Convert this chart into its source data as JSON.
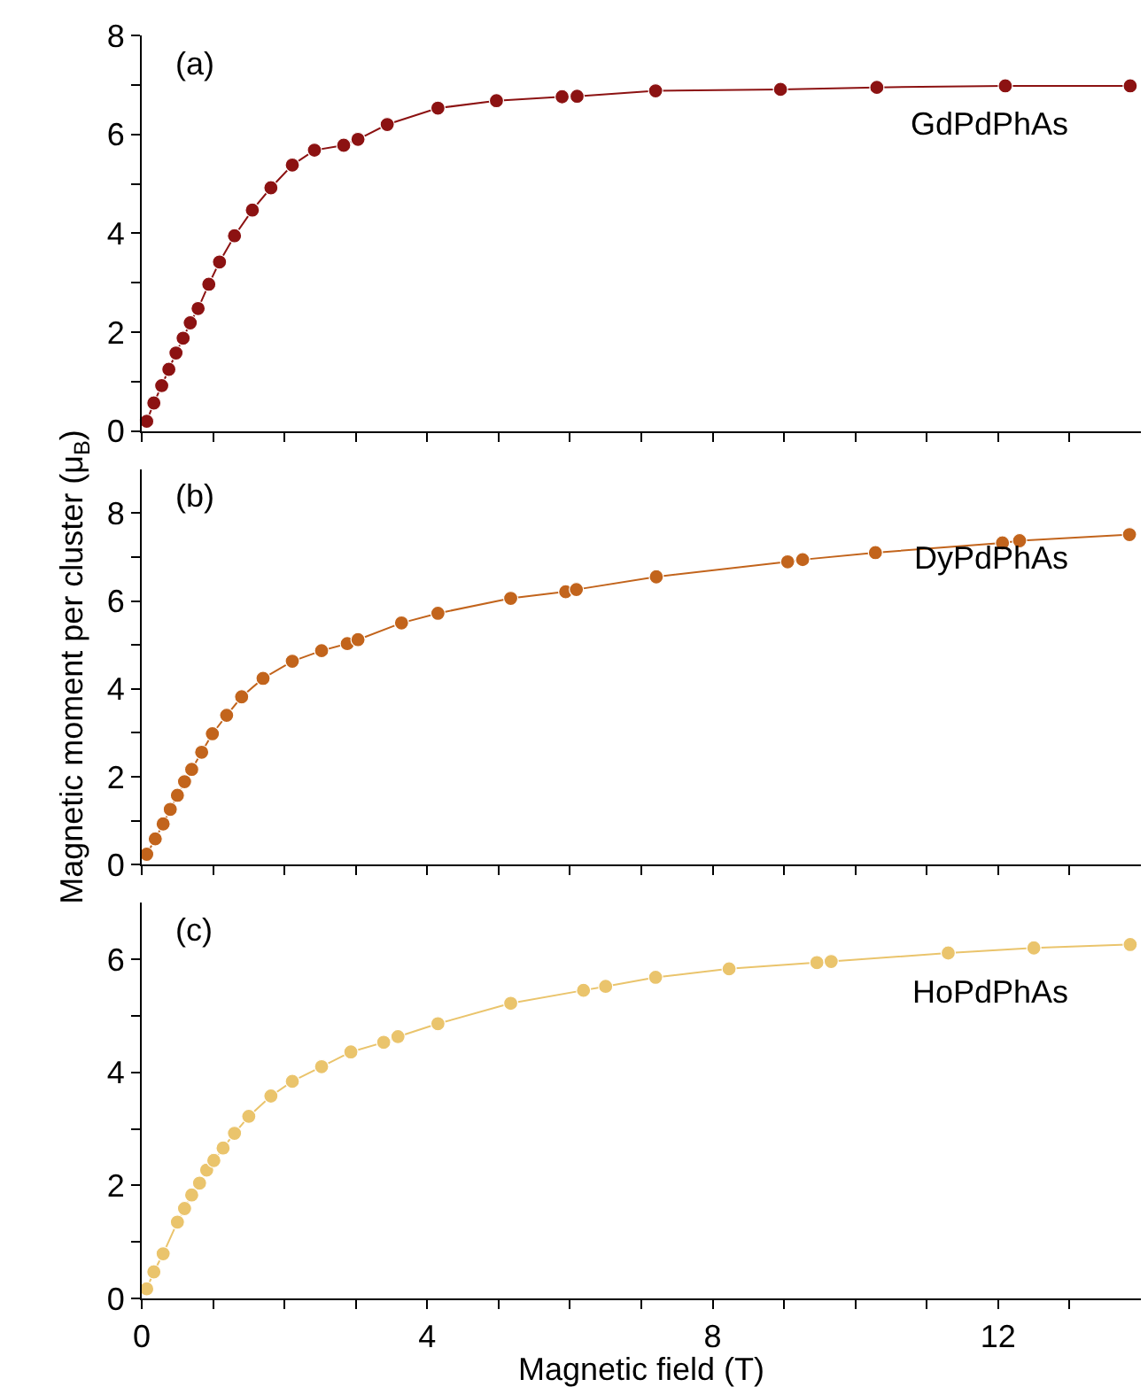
{
  "chart_data": [
    {
      "type": "line",
      "marker": "circle",
      "line_style": "solid",
      "grid": false,
      "tick_labels": "y",
      "annotations": [
        "(a)",
        "GdPdPhAs"
      ],
      "xlim": [
        0,
        14
      ],
      "xticks": [
        0,
        {
          "value": 1,
          "label": null
        },
        {
          "value": 2,
          "label": null
        },
        {
          "value": 3,
          "label": null
        },
        4,
        {
          "value": 5,
          "label": null
        },
        {
          "value": 6,
          "label": null
        },
        {
          "value": 7,
          "label": null
        },
        8,
        {
          "value": 9,
          "label": null
        },
        {
          "value": 10,
          "label": null
        },
        {
          "value": 11,
          "label": null
        },
        12,
        {
          "value": 13,
          "label": null
        }
      ],
      "ylim": [
        0,
        8
      ],
      "yticks": [
        0,
        {
          "value": 1,
          "label": null
        },
        2,
        {
          "value": 3,
          "label": null
        },
        4,
        {
          "value": 5,
          "label": null
        },
        6,
        {
          "value": 7,
          "label": null
        },
        8
      ],
      "series": [
        {
          "color": "#8c1212",
          "x": [
            0.07,
            0.17,
            0.28,
            0.38,
            0.48,
            0.58,
            0.68,
            0.79,
            0.94,
            1.09,
            1.3,
            1.55,
            1.81,
            2.11,
            2.42,
            2.83,
            3.03,
            3.44,
            4.15,
            4.97,
            5.89,
            6.1,
            7.2,
            8.95,
            10.3,
            12.1,
            13.85
          ],
          "values": [
            0.2,
            0.57,
            0.92,
            1.25,
            1.58,
            1.88,
            2.19,
            2.48,
            2.97,
            3.42,
            3.95,
            4.47,
            4.92,
            5.38,
            5.68,
            5.78,
            5.9,
            6.2,
            6.53,
            6.68,
            6.76,
            6.77,
            6.88,
            6.91,
            6.95,
            6.98,
            6.98
          ]
        }
      ]
    },
    {
      "type": "line",
      "marker": "circle",
      "line_style": "solid",
      "grid": false,
      "tick_labels": "y",
      "ylabel": "Magnetic moment per cluster (μ$_{B}$)",
      "annotations": [
        "(b)",
        "DyPdPhAs"
      ],
      "xlim": [
        0,
        14
      ],
      "xticks": [
        0,
        {
          "value": 1,
          "label": null
        },
        {
          "value": 2,
          "label": null
        },
        {
          "value": 3,
          "label": null
        },
        4,
        {
          "value": 5,
          "label": null
        },
        {
          "value": 6,
          "label": null
        },
        {
          "value": 7,
          "label": null
        },
        8,
        {
          "value": 9,
          "label": null
        },
        {
          "value": 10,
          "label": null
        },
        {
          "value": 11,
          "label": null
        },
        12,
        {
          "value": 13,
          "label": null
        }
      ],
      "ylim": [
        0,
        9
      ],
      "yticks": [
        0,
        {
          "value": 1,
          "label": null
        },
        2,
        {
          "value": 3,
          "label": null
        },
        4,
        {
          "value": 5,
          "label": null
        },
        6,
        {
          "value": 7,
          "label": null
        },
        8
      ],
      "series": [
        {
          "color": "#c2641c",
          "x": [
            0.07,
            0.19,
            0.3,
            0.4,
            0.5,
            0.6,
            0.7,
            0.84,
            0.99,
            1.19,
            1.4,
            1.7,
            2.11,
            2.52,
            2.88,
            3.03,
            3.64,
            4.15,
            5.17,
            5.94,
            6.09,
            7.21,
            9.05,
            9.26,
            10.28,
            12.06,
            12.3,
            13.84
          ],
          "values": [
            0.24,
            0.59,
            0.93,
            1.26,
            1.58,
            1.89,
            2.17,
            2.56,
            2.98,
            3.4,
            3.82,
            4.24,
            4.63,
            4.87,
            5.03,
            5.12,
            5.5,
            5.72,
            6.06,
            6.21,
            6.26,
            6.55,
            6.89,
            6.94,
            7.1,
            7.32,
            7.37,
            7.51
          ]
        }
      ]
    },
    {
      "type": "line",
      "marker": "circle",
      "line_style": "solid",
      "grid": false,
      "xlabel": "Magnetic field (T)",
      "annotations": [
        "(c)",
        "HoPdPhAs"
      ],
      "xlim": [
        0,
        14
      ],
      "xticks": [
        0,
        {
          "value": 1,
          "label": null
        },
        {
          "value": 2,
          "label": null
        },
        {
          "value": 3,
          "label": null
        },
        4,
        {
          "value": 5,
          "label": null
        },
        {
          "value": 6,
          "label": null
        },
        {
          "value": 7,
          "label": null
        },
        8,
        {
          "value": 9,
          "label": null
        },
        {
          "value": 10,
          "label": null
        },
        {
          "value": 11,
          "label": null
        },
        12,
        {
          "value": 13,
          "label": null
        }
      ],
      "ylim": [
        0,
        7
      ],
      "yticks": [
        0,
        {
          "value": 1,
          "label": null
        },
        2,
        {
          "value": 3,
          "label": null
        },
        4,
        {
          "value": 5,
          "label": null
        },
        6
      ],
      "series": [
        {
          "color": "#eac46c",
          "x": [
            0.07,
            0.17,
            0.3,
            0.5,
            0.6,
            0.7,
            0.81,
            0.91,
            1.01,
            1.14,
            1.3,
            1.5,
            1.81,
            2.11,
            2.52,
            2.93,
            3.39,
            3.59,
            4.15,
            5.17,
            6.19,
            6.5,
            7.2,
            8.23,
            9.46,
            9.66,
            11.3,
            12.5,
            13.85
          ],
          "values": [
            0.17,
            0.47,
            0.79,
            1.35,
            1.59,
            1.83,
            2.04,
            2.27,
            2.44,
            2.66,
            2.92,
            3.22,
            3.58,
            3.84,
            4.1,
            4.36,
            4.53,
            4.63,
            4.86,
            5.22,
            5.45,
            5.52,
            5.68,
            5.83,
            5.94,
            5.96,
            6.11,
            6.2,
            6.26
          ]
        }
      ]
    }
  ]
}
